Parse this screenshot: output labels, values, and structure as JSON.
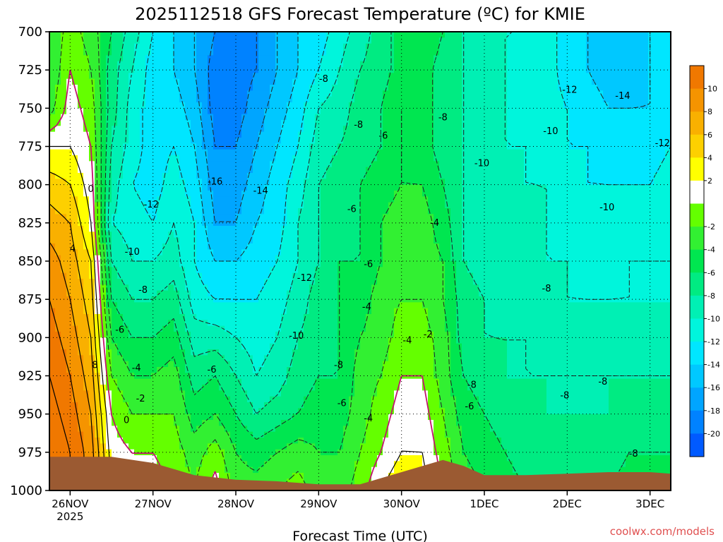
{
  "chart_data": {
    "type": "heatmap",
    "title": "2025112518 GFS Forecast Temperature (ºC) for KMIE",
    "xlabel": "Forecast Time (UTC)",
    "ylabel": "",
    "credit": "coolwx.com/models",
    "y_axis": {
      "ticks": [
        "700",
        "725",
        "750",
        "775",
        "800",
        "825",
        "850",
        "875",
        "900",
        "925",
        "950",
        "975",
        "1000"
      ],
      "range": [
        700,
        1000
      ],
      "inverted": true
    },
    "x_axis": {
      "ticks": [
        {
          "label": "26NOV",
          "sub": "2025"
        },
        {
          "label": "27NOV",
          "sub": ""
        },
        {
          "label": "28NOV",
          "sub": ""
        },
        {
          "label": "29NOV",
          "sub": ""
        },
        {
          "label": "30NOV",
          "sub": ""
        },
        {
          "label": "1DEC",
          "sub": ""
        },
        {
          "label": "2DEC",
          "sub": ""
        },
        {
          "label": "3DEC",
          "sub": ""
        }
      ],
      "range": [
        -0.25,
        7.25
      ]
    },
    "grid": true,
    "colorbar": {
      "placement": "right",
      "bins": [
        {
          "label": "10",
          "color": "#f07800"
        },
        {
          "label": "8",
          "color": "#f59400"
        },
        {
          "label": "6",
          "color": "#f9b000"
        },
        {
          "label": "4",
          "color": "#fdd000"
        },
        {
          "label": "2",
          "color": "#ffff00"
        },
        {
          "label": "",
          "color": "#ffffff"
        },
        {
          "label": "-2",
          "color": "#64ff00"
        },
        {
          "label": "-4",
          "color": "#32f032"
        },
        {
          "label": "-6",
          "color": "#00e650"
        },
        {
          "label": "-8",
          "color": "#00eb82"
        },
        {
          "label": "-10",
          "color": "#00f0b4"
        },
        {
          "label": "-12",
          "color": "#00f5dc"
        },
        {
          "label": "-14",
          "color": "#00e6ff"
        },
        {
          "label": "-16",
          "color": "#00c8ff"
        },
        {
          "label": "-18",
          "color": "#00a5ff"
        },
        {
          "label": "-20",
          "color": "#0082ff"
        },
        {
          "label": "",
          "color": "#005aff"
        }
      ]
    },
    "series": [
      {
        "t": -0.25,
        "temps": [
          -4,
          -4,
          -3,
          2,
          5,
          7,
          9,
          10,
          11,
          12,
          13,
          14,
          14
        ]
      },
      {
        "t": 0.0,
        "temps": [
          -1,
          0,
          1,
          2,
          4,
          6,
          7,
          8,
          9,
          10,
          11,
          12,
          12
        ]
      },
      {
        "t": 0.25,
        "temps": [
          -3,
          -2,
          -1,
          0,
          1,
          2,
          4,
          5,
          6,
          7,
          8,
          9,
          9
        ]
      },
      {
        "t": 0.5,
        "temps": [
          -6,
          -7,
          -7,
          -8,
          -9,
          -10,
          -8,
          -6,
          -4,
          -2,
          0,
          1,
          2
        ]
      },
      {
        "t": 0.75,
        "temps": [
          -9,
          -10,
          -11,
          -11,
          -12,
          -11,
          -10,
          -8,
          -6,
          -4,
          -2,
          0,
          1
        ]
      },
      {
        "t": 1.0,
        "temps": [
          -12,
          -13,
          -13,
          -13,
          -13,
          -12,
          -10,
          -8,
          -6,
          -4,
          -2,
          0,
          1
        ]
      },
      {
        "t": 1.25,
        "temps": [
          -14,
          -14,
          -13,
          -12,
          -11,
          -10,
          -9,
          -7,
          -5,
          -3,
          -2,
          -1,
          0
        ]
      },
      {
        "t": 1.5,
        "temps": [
          -16,
          -16,
          -15,
          -14,
          -13,
          -12,
          -12,
          -11,
          -9,
          -7,
          -5,
          -3,
          -2
        ]
      },
      {
        "t": 1.75,
        "temps": [
          -18,
          -19,
          -19,
          -18,
          -17,
          -16,
          -14,
          -12,
          -9,
          -6,
          -4,
          -1,
          1
        ]
      },
      {
        "t": 2.0,
        "temps": [
          -19,
          -19,
          -19,
          -18,
          -17,
          -16,
          -14,
          -12,
          -10,
          -8,
          -6,
          -4,
          -3
        ]
      },
      {
        "t": 2.25,
        "temps": [
          -18,
          -18,
          -17,
          -16,
          -15,
          -14,
          -13,
          -12,
          -11,
          -10,
          -8,
          -5,
          -3
        ]
      },
      {
        "t": 2.5,
        "temps": [
          -16,
          -16,
          -15,
          -14,
          -13,
          -13,
          -12,
          -11,
          -10,
          -9,
          -7,
          -4,
          -2
        ]
      },
      {
        "t": 2.75,
        "temps": [
          -14,
          -14,
          -13,
          -12,
          -11,
          -10,
          -10,
          -9,
          -8,
          -7,
          -6,
          -3,
          -1
        ]
      },
      {
        "t": 3.0,
        "temps": [
          -13,
          -12,
          -10,
          -9,
          -8,
          -8,
          -8,
          -7,
          -7,
          -6,
          -5,
          -4,
          -3
        ]
      },
      {
        "t": 3.25,
        "temps": [
          -11,
          -10,
          -9,
          -8,
          -7,
          -7,
          -6,
          -6,
          -6,
          -6,
          -5,
          -4,
          -3
        ]
      },
      {
        "t": 3.5,
        "temps": [
          -9,
          -8,
          -7,
          -7,
          -6,
          -6,
          -6,
          -5,
          -4,
          -3,
          -3,
          -2,
          -1
        ]
      },
      {
        "t": 3.75,
        "temps": [
          -7,
          -7,
          -6,
          -6,
          -5,
          -4,
          -4,
          -3,
          -3,
          -2,
          -1,
          0,
          2
        ]
      },
      {
        "t": 4.0,
        "temps": [
          -5,
          -5,
          -4,
          -4,
          -4,
          -3,
          -3,
          -2,
          -1,
          0,
          1,
          2,
          4
        ]
      },
      {
        "t": 4.25,
        "temps": [
          -4,
          -5,
          -5,
          -5,
          -4,
          -3,
          -3,
          -2,
          -1,
          0,
          1,
          2,
          3
        ]
      },
      {
        "t": 4.5,
        "temps": [
          -6,
          -7,
          -7,
          -7,
          -6,
          -5,
          -4,
          -4,
          -3,
          -3,
          -2,
          -1,
          0
        ]
      },
      {
        "t": 4.75,
        "temps": [
          -8,
          -8,
          -8,
          -8,
          -8,
          -8,
          -8,
          -7,
          -7,
          -6,
          -5,
          -4,
          -3
        ]
      },
      {
        "t": 5.0,
        "temps": [
          -9,
          -9,
          -9,
          -9,
          -9,
          -9,
          -9,
          -8,
          -8,
          -7,
          -6,
          -5,
          -4
        ]
      },
      {
        "t": 5.25,
        "temps": [
          -10,
          -10,
          -10,
          -10,
          -9,
          -9,
          -9,
          -9,
          -8,
          -8,
          -7,
          -6,
          -5
        ]
      },
      {
        "t": 5.5,
        "temps": [
          -10,
          -11,
          -11,
          -10,
          -10,
          -9,
          -9,
          -9,
          -8,
          -8,
          -7,
          -7,
          -6
        ]
      },
      {
        "t": 5.75,
        "temps": [
          -11,
          -11,
          -11,
          -11,
          -10,
          -10,
          -10,
          -9,
          -9,
          -8,
          -8,
          -7,
          -6
        ]
      },
      {
        "t": 6.0,
        "temps": [
          -13,
          -13,
          -12,
          -12,
          -11,
          -11,
          -10,
          -10,
          -9,
          -8,
          -8,
          -7,
          -6
        ]
      },
      {
        "t": 6.25,
        "temps": [
          -14,
          -14,
          -13,
          -12,
          -12,
          -11,
          -11,
          -10,
          -9,
          -8,
          -8,
          -7,
          -6
        ]
      },
      {
        "t": 6.5,
        "temps": [
          -15,
          -15,
          -14,
          -13,
          -12,
          -11,
          -11,
          -10,
          -9,
          -8,
          -8,
          -7,
          -6
        ]
      },
      {
        "t": 6.75,
        "temps": [
          -15,
          -15,
          -14,
          -13,
          -12,
          -11,
          -10,
          -10,
          -9,
          -8,
          -7,
          -6,
          -5
        ]
      },
      {
        "t": 7.0,
        "temps": [
          -14,
          -14,
          -14,
          -13,
          -12,
          -11,
          -10,
          -10,
          -9,
          -8,
          -7,
          -6,
          -5
        ]
      },
      {
        "t": 7.25,
        "temps": [
          -13,
          -13,
          -13,
          -12,
          -11,
          -11,
          -10,
          -10,
          -9,
          -8,
          -7,
          -6,
          -5
        ]
      }
    ],
    "surface_pressure": [
      {
        "t": -0.25,
        "p": 978
      },
      {
        "t": 0.5,
        "p": 978
      },
      {
        "t": 1.0,
        "p": 982
      },
      {
        "t": 1.5,
        "p": 990
      },
      {
        "t": 2.0,
        "p": 993
      },
      {
        "t": 2.5,
        "p": 994
      },
      {
        "t": 3.0,
        "p": 996
      },
      {
        "t": 3.5,
        "p": 996
      },
      {
        "t": 4.0,
        "p": 988
      },
      {
        "t": 4.5,
        "p": 980
      },
      {
        "t": 4.75,
        "p": 984
      },
      {
        "t": 5.0,
        "p": 990
      },
      {
        "t": 5.5,
        "p": 990
      },
      {
        "t": 6.0,
        "p": 989
      },
      {
        "t": 6.5,
        "p": 988
      },
      {
        "t": 7.0,
        "p": 988
      },
      {
        "t": 7.25,
        "p": 989
      }
    ],
    "contour_labels": [
      {
        "t": 0.25,
        "p": 803,
        "text": "0"
      },
      {
        "t": 0.03,
        "p": 842,
        "text": "4"
      },
      {
        "t": 0.3,
        "p": 918,
        "text": "8"
      },
      {
        "t": 0.68,
        "p": 954,
        "text": "0"
      },
      {
        "t": 0.85,
        "p": 940,
        "text": "-2"
      },
      {
        "t": 0.8,
        "p": 920,
        "text": "-4"
      },
      {
        "t": 0.6,
        "p": 895,
        "text": "-6"
      },
      {
        "t": 0.88,
        "p": 869,
        "text": "-8"
      },
      {
        "t": 0.75,
        "p": 844,
        "text": "-10"
      },
      {
        "t": 0.98,
        "p": 813,
        "text": "-12"
      },
      {
        "t": 1.75,
        "p": 798,
        "text": "-16"
      },
      {
        "t": 2.3,
        "p": 804,
        "text": "-14"
      },
      {
        "t": 2.83,
        "p": 861,
        "text": "-12"
      },
      {
        "t": 2.73,
        "p": 899,
        "text": "-10"
      },
      {
        "t": 1.71,
        "p": 921,
        "text": "-6"
      },
      {
        "t": 3.24,
        "p": 918,
        "text": "-8"
      },
      {
        "t": 3.06,
        "p": 731,
        "text": "-8"
      },
      {
        "t": 3.48,
        "p": 761,
        "text": "-8"
      },
      {
        "t": 3.78,
        "p": 768,
        "text": "-6"
      },
      {
        "t": 3.4,
        "p": 816,
        "text": "-6"
      },
      {
        "t": 3.6,
        "p": 852,
        "text": "-6"
      },
      {
        "t": 3.58,
        "p": 880,
        "text": "-4"
      },
      {
        "t": 4.07,
        "p": 902,
        "text": "-4"
      },
      {
        "t": 4.32,
        "p": 898,
        "text": "-2"
      },
      {
        "t": 4.4,
        "p": 825,
        "text": "-4"
      },
      {
        "t": 3.28,
        "p": 943,
        "text": "-6"
      },
      {
        "t": 3.6,
        "p": 953,
        "text": "-4"
      },
      {
        "t": 4.5,
        "p": 756,
        "text": "-8"
      },
      {
        "t": 4.97,
        "p": 786,
        "text": "-10"
      },
      {
        "t": 5.75,
        "p": 868,
        "text": "-8"
      },
      {
        "t": 4.85,
        "p": 931,
        "text": "-8"
      },
      {
        "t": 4.82,
        "p": 945,
        "text": "-6"
      },
      {
        "t": 5.8,
        "p": 765,
        "text": "-10"
      },
      {
        "t": 6.03,
        "p": 738,
        "text": "-12"
      },
      {
        "t": 6.67,
        "p": 742,
        "text": "-14"
      },
      {
        "t": 7.15,
        "p": 773,
        "text": "-12"
      },
      {
        "t": 6.48,
        "p": 815,
        "text": "-10"
      },
      {
        "t": 5.97,
        "p": 938,
        "text": "-8"
      },
      {
        "t": 6.43,
        "p": 929,
        "text": "-8"
      },
      {
        "t": 6.8,
        "p": 976,
        "text": "-8"
      }
    ]
  }
}
